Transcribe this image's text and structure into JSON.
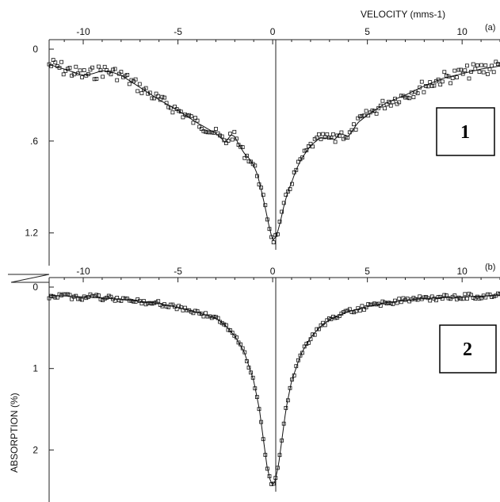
{
  "chart_data": [
    {
      "panel": "(a)",
      "type": "scatter",
      "title": "VELOCITY (mms-1)",
      "xlabel": "VELOCITY (mms-1)",
      "ylabel": "",
      "badge": "1",
      "xlim": [
        -11.8,
        12.0
      ],
      "ylim": [
        0,
        1.45
      ],
      "y_inverted": true,
      "x_ticks": [
        -10,
        -5,
        0,
        5,
        10
      ],
      "x_tick_labels": [
        "-10",
        "-5",
        "0",
        "5",
        "10"
      ],
      "y_ticks": [
        0,
        0.6,
        1.2
      ],
      "y_tick_labels": [
        "0",
        ".6",
        "1.2"
      ],
      "fit_curve": {
        "x": [
          -11.8,
          -11,
          -10,
          -9.5,
          -9,
          -8.5,
          -8,
          -7,
          -6,
          -5,
          -4,
          -3,
          -2.8,
          -2.5,
          -2.2,
          -2,
          -1.8,
          -1.5,
          -1.2,
          -1,
          -0.8,
          -0.6,
          -0.4,
          -0.2,
          0,
          0.2,
          0.4,
          0.6,
          0.8,
          1,
          1.2,
          1.5,
          2,
          2.5,
          3,
          3.3,
          3.5,
          3.8,
          4,
          4.5,
          5,
          6,
          7,
          8,
          9,
          10,
          11,
          12
        ],
        "y": [
          0.1,
          0.13,
          0.17,
          0.16,
          0.14,
          0.15,
          0.17,
          0.25,
          0.33,
          0.4,
          0.48,
          0.55,
          0.57,
          0.61,
          0.56,
          0.57,
          0.62,
          0.68,
          0.72,
          0.76,
          0.82,
          0.92,
          1.03,
          1.15,
          1.25,
          1.22,
          1.13,
          1.02,
          0.93,
          0.87,
          0.8,
          0.72,
          0.63,
          0.58,
          0.58,
          0.59,
          0.55,
          0.56,
          0.57,
          0.48,
          0.43,
          0.35,
          0.3,
          0.24,
          0.19,
          0.16,
          0.13,
          0.11
        ]
      }
    },
    {
      "panel": "(b)",
      "type": "scatter",
      "title": "",
      "xlabel": "",
      "ylabel": "ABSORPTION (%)",
      "badge": "2",
      "xlim": [
        -11.8,
        12.0
      ],
      "ylim": [
        0,
        2.6
      ],
      "y_inverted": true,
      "x_ticks": [
        -10,
        -5,
        0,
        5,
        10
      ],
      "x_tick_labels": [
        "-10",
        "-5",
        "0",
        "5",
        "10"
      ],
      "y_ticks": [
        0,
        1,
        2
      ],
      "y_tick_labels": [
        "0",
        "1",
        "2"
      ],
      "fit_curve": {
        "x": [
          -11.8,
          -10,
          -8,
          -6,
          -5,
          -4,
          -3,
          -2.5,
          -2,
          -1.5,
          -1,
          -0.7,
          -0.5,
          -0.3,
          -0.1,
          0,
          0.1,
          0.3,
          0.5,
          0.7,
          1,
          1.5,
          2,
          2.5,
          3,
          4,
          5,
          6,
          8,
          10,
          12
        ],
        "y": [
          0.1,
          0.12,
          0.15,
          0.2,
          0.25,
          0.31,
          0.38,
          0.47,
          0.6,
          0.8,
          1.15,
          1.5,
          1.85,
          2.2,
          2.4,
          2.42,
          2.4,
          2.2,
          1.85,
          1.5,
          1.15,
          0.82,
          0.62,
          0.49,
          0.4,
          0.3,
          0.24,
          0.19,
          0.14,
          0.12,
          0.1
        ]
      }
    }
  ]
}
